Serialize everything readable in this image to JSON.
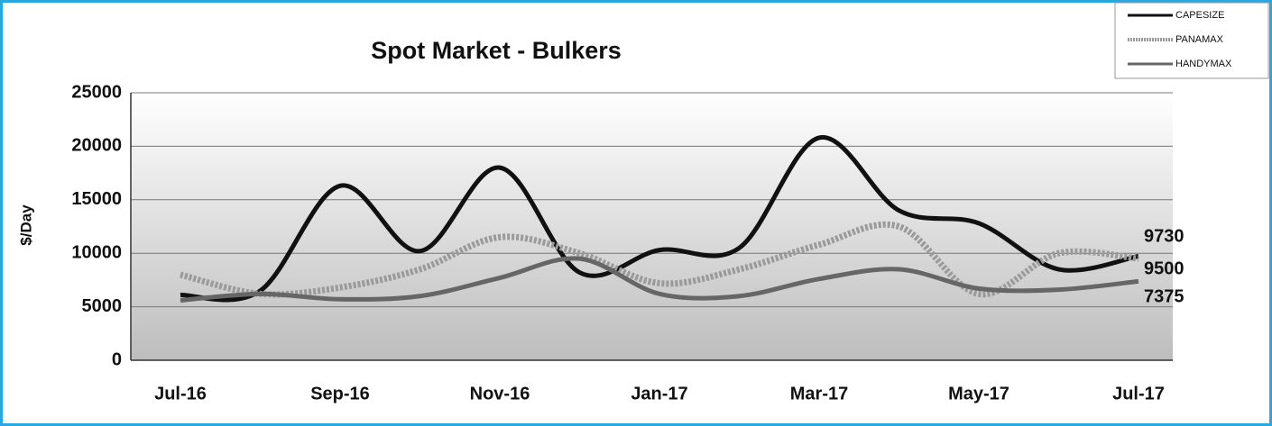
{
  "chart_data": {
    "type": "line",
    "title": "Spot Market - Bulkers",
    "y_label": "$/Day",
    "categories": [
      "Jul-16",
      null,
      "Sep-16",
      null,
      "Nov-16",
      null,
      "Jan-17",
      null,
      "Mar-17",
      null,
      "May-17",
      null,
      "Jul-17"
    ],
    "series": [
      {
        "name": "CAPESIZE",
        "color": "#111111",
        "line_style": "solid",
        "values": [
          6100,
          6500,
          16300,
          10200,
          18000,
          8200,
          10300,
          10500,
          20800,
          14000,
          12800,
          8500,
          9730
        ]
      },
      {
        "name": "PANAMAX",
        "color": "#9a9a9a",
        "line_style": "dotted",
        "values": [
          8000,
          6200,
          6800,
          8500,
          11500,
          10000,
          7200,
          8500,
          10800,
          12500,
          6200,
          10000,
          9500
        ]
      },
      {
        "name": "HANDYMAX",
        "color": "#666666",
        "line_style": "solid",
        "values": [
          5600,
          6200,
          5700,
          6000,
          7700,
          9500,
          6200,
          6000,
          7600,
          8500,
          6700,
          6600,
          7375
        ]
      }
    ],
    "ylim": [
      0,
      25000
    ],
    "yticks": [
      0,
      5000,
      10000,
      15000,
      20000,
      25000
    ],
    "grid": true,
    "legend": "upper right"
  }
}
